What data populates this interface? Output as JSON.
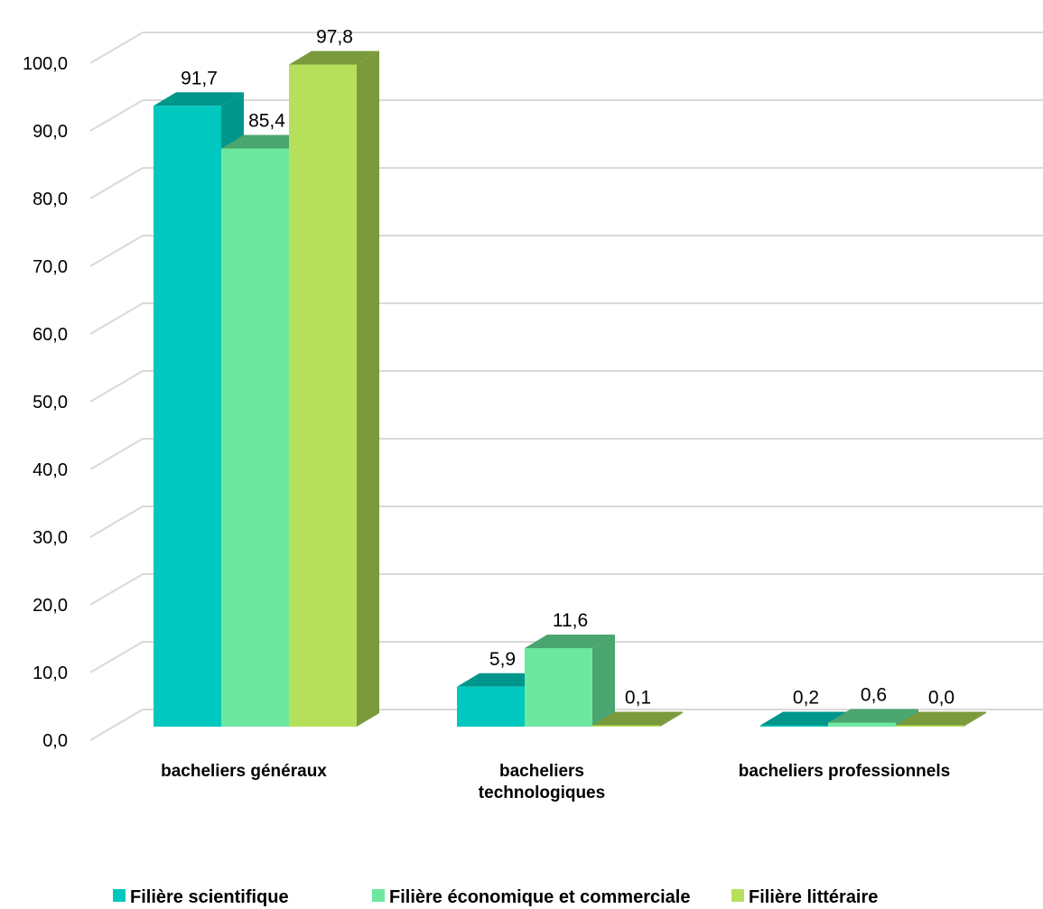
{
  "chart_data": {
    "type": "bar",
    "three_d": true,
    "categories": [
      [
        "bacheliers généraux"
      ],
      [
        "bacheliers",
        "technologiques"
      ],
      [
        "bacheliers professionnels"
      ]
    ],
    "series": [
      {
        "name": "Filière scientifique",
        "values": [
          91.7,
          5.9,
          0.2
        ],
        "labels": [
          "91,7",
          "5,9",
          "0,2"
        ],
        "color": "#00c8be",
        "side_color": "#00968c"
      },
      {
        "name": "Filière économique et commerciale",
        "values": [
          85.4,
          11.6,
          0.6
        ],
        "labels": [
          "85,4",
          "11,6",
          "0,6"
        ],
        "color": "#6ee8a0",
        "side_color": "#4aa56e"
      },
      {
        "name": "Filière littéraire",
        "values": [
          97.8,
          0.1,
          0.0
        ],
        "labels": [
          "97,8",
          "0,1",
          "0,0"
        ],
        "color": "#b6e05c",
        "side_color": "#7a9a3c"
      }
    ],
    "yticks": [
      "0,0",
      "10,0",
      "20,0",
      "30,0",
      "40,0",
      "50,0",
      "60,0",
      "70,0",
      "80,0",
      "90,0",
      "100,0"
    ],
    "ylim": [
      0,
      100
    ],
    "grid": true,
    "legend_position": "bottom"
  }
}
